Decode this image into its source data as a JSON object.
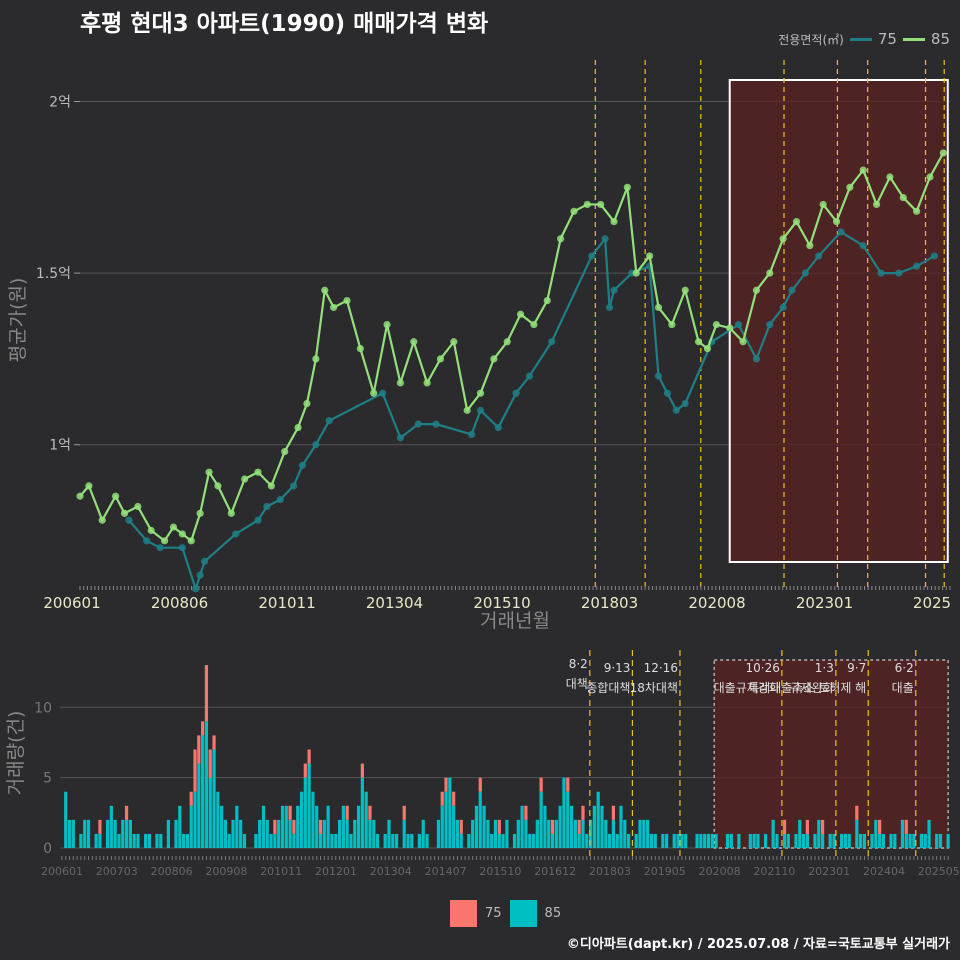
{
  "title": "후평 현대3 아파트(1990) 매매가격 변화",
  "source": "©디아파트(dapt.kr) / 2025.07.08 / 자료=국토교통부 실거래가",
  "legend": {
    "area_title": "전용면적(㎡)",
    "bottom": [
      {
        "name": "75",
        "color": "#f8766d"
      },
      {
        "name": "85",
        "color": "#00bfc4"
      }
    ]
  },
  "colors": {
    "line75": "#1f7f86",
    "line85": "#93e07a",
    "bar75": "#f8766d",
    "bar85": "#00bfc4",
    "policy": "#f0c020",
    "highlight": "#5a2222"
  },
  "chart_data": [
    {
      "type": "line",
      "title": "후평 현대3 아파트(1990) 매매가격 변화",
      "xlabel": "거래년월",
      "ylabel": "평균가(원)",
      "x_ticks": [
        "200601",
        "200806",
        "201011",
        "201304",
        "201510",
        "201803",
        "202008",
        "202301",
        "2025"
      ],
      "y_ticks": [
        {
          "label": "1억",
          "value": 1.0
        },
        {
          "label": "1.5억",
          "value": 1.5
        },
        {
          "label": "2억",
          "value": 2.0
        }
      ],
      "ylim": [
        0.6,
        2.15
      ],
      "x_range": [
        2006.0,
        2025.55
      ],
      "series": [
        {
          "name": "75",
          "points": [
            [
              2007.1,
              0.78
            ],
            [
              2007.5,
              0.72
            ],
            [
              2007.8,
              0.7
            ],
            [
              2008.3,
              0.7
            ],
            [
              2008.6,
              0.58
            ],
            [
              2008.7,
              0.62
            ],
            [
              2008.8,
              0.66
            ],
            [
              2009.5,
              0.74
            ],
            [
              2010.0,
              0.78
            ],
            [
              2010.2,
              0.82
            ],
            [
              2010.5,
              0.84
            ],
            [
              2010.8,
              0.88
            ],
            [
              2011.0,
              0.94
            ],
            [
              2011.3,
              1.0
            ],
            [
              2011.6,
              1.07
            ],
            [
              2012.8,
              1.15
            ],
            [
              2013.2,
              1.02
            ],
            [
              2013.6,
              1.06
            ],
            [
              2014.0,
              1.06
            ],
            [
              2014.8,
              1.03
            ],
            [
              2015.0,
              1.1
            ],
            [
              2015.4,
              1.05
            ],
            [
              2015.8,
              1.15
            ],
            [
              2016.1,
              1.2
            ],
            [
              2016.6,
              1.3
            ],
            [
              2017.5,
              1.55
            ],
            [
              2017.8,
              1.6
            ],
            [
              2017.9,
              1.4
            ],
            [
              2018.0,
              1.45
            ],
            [
              2018.4,
              1.5
            ],
            [
              2018.8,
              1.52
            ],
            [
              2019.0,
              1.2
            ],
            [
              2019.2,
              1.15
            ],
            [
              2019.4,
              1.1
            ],
            [
              2019.6,
              1.12
            ],
            [
              2020.2,
              1.3
            ],
            [
              2020.8,
              1.35
            ],
            [
              2021.2,
              1.25
            ],
            [
              2021.5,
              1.35
            ],
            [
              2021.8,
              1.4
            ],
            [
              2022.0,
              1.45
            ],
            [
              2022.3,
              1.5
            ],
            [
              2022.6,
              1.55
            ],
            [
              2023.1,
              1.62
            ],
            [
              2023.6,
              1.58
            ],
            [
              2024.0,
              1.5
            ],
            [
              2024.4,
              1.5
            ],
            [
              2024.8,
              1.52
            ],
            [
              2025.2,
              1.55
            ]
          ]
        },
        {
          "name": "85",
          "points": [
            [
              2006.0,
              0.85
            ],
            [
              2006.2,
              0.88
            ],
            [
              2006.5,
              0.78
            ],
            [
              2006.8,
              0.85
            ],
            [
              2007.0,
              0.8
            ],
            [
              2007.3,
              0.82
            ],
            [
              2007.6,
              0.75
            ],
            [
              2007.9,
              0.72
            ],
            [
              2008.1,
              0.76
            ],
            [
              2008.3,
              0.74
            ],
            [
              2008.5,
              0.72
            ],
            [
              2008.7,
              0.8
            ],
            [
              2008.9,
              0.92
            ],
            [
              2009.1,
              0.88
            ],
            [
              2009.4,
              0.8
            ],
            [
              2009.7,
              0.9
            ],
            [
              2010.0,
              0.92
            ],
            [
              2010.3,
              0.88
            ],
            [
              2010.6,
              0.98
            ],
            [
              2010.9,
              1.05
            ],
            [
              2011.1,
              1.12
            ],
            [
              2011.3,
              1.25
            ],
            [
              2011.5,
              1.45
            ],
            [
              2011.7,
              1.4
            ],
            [
              2012.0,
              1.42
            ],
            [
              2012.3,
              1.28
            ],
            [
              2012.6,
              1.15
            ],
            [
              2012.9,
              1.35
            ],
            [
              2013.2,
              1.18
            ],
            [
              2013.5,
              1.3
            ],
            [
              2013.8,
              1.18
            ],
            [
              2014.1,
              1.25
            ],
            [
              2014.4,
              1.3
            ],
            [
              2014.7,
              1.1
            ],
            [
              2015.0,
              1.15
            ],
            [
              2015.3,
              1.25
            ],
            [
              2015.6,
              1.3
            ],
            [
              2015.9,
              1.38
            ],
            [
              2016.2,
              1.35
            ],
            [
              2016.5,
              1.42
            ],
            [
              2016.8,
              1.6
            ],
            [
              2017.1,
              1.68
            ],
            [
              2017.4,
              1.7
            ],
            [
              2017.7,
              1.7
            ],
            [
              2018.0,
              1.65
            ],
            [
              2018.3,
              1.75
            ],
            [
              2018.5,
              1.5
            ],
            [
              2018.8,
              1.55
            ],
            [
              2019.0,
              1.4
            ],
            [
              2019.3,
              1.35
            ],
            [
              2019.6,
              1.45
            ],
            [
              2019.9,
              1.3
            ],
            [
              2020.1,
              1.28
            ],
            [
              2020.3,
              1.35
            ],
            [
              2020.6,
              1.34
            ],
            [
              2020.9,
              1.3
            ],
            [
              2021.2,
              1.45
            ],
            [
              2021.5,
              1.5
            ],
            [
              2021.8,
              1.6
            ],
            [
              2022.1,
              1.65
            ],
            [
              2022.4,
              1.58
            ],
            [
              2022.7,
              1.7
            ],
            [
              2023.0,
              1.65
            ],
            [
              2023.3,
              1.75
            ],
            [
              2023.6,
              1.8
            ],
            [
              2023.9,
              1.7
            ],
            [
              2024.2,
              1.78
            ],
            [
              2024.5,
              1.72
            ],
            [
              2024.8,
              1.68
            ],
            [
              2025.1,
              1.78
            ],
            [
              2025.4,
              1.85
            ]
          ]
        }
      ],
      "highlight_range": [
        2020.6,
        2025.5
      ],
      "policy_dates": [
        2017.58,
        2018.7,
        2019.95,
        2021.82,
        2023.02,
        2023.7,
        2025.0,
        2025.42
      ]
    },
    {
      "type": "bar",
      "xlabel": "",
      "ylabel": "거래량(건)",
      "y_ticks": [
        0,
        5,
        10
      ],
      "ylim": [
        0,
        13.5
      ],
      "x_ticks": [
        "200601",
        "200703",
        "200806",
        "200908",
        "201011",
        "201201",
        "201304",
        "201407",
        "201510",
        "201612",
        "201803",
        "201905",
        "202008",
        "202110",
        "202301",
        "202404",
        "202505"
      ],
      "series_names": [
        "75",
        "85"
      ],
      "months": 234,
      "values85": [
        0,
        4,
        2,
        2,
        0,
        1,
        2,
        2,
        0,
        1,
        1,
        0,
        2,
        3,
        2,
        1,
        2,
        2,
        2,
        1,
        1,
        0,
        1,
        1,
        0,
        1,
        1,
        0,
        2,
        0,
        2,
        3,
        1,
        1,
        3,
        4,
        6,
        8,
        9,
        5,
        7,
        4,
        3,
        2,
        1,
        2,
        3,
        2,
        1,
        0,
        0,
        1,
        2,
        3,
        2,
        1,
        1,
        2,
        3,
        3,
        2,
        1,
        3,
        4,
        5,
        6,
        4,
        3,
        1,
        2,
        3,
        1,
        1,
        2,
        3,
        2,
        1,
        2,
        3,
        5,
        4,
        2,
        2,
        1,
        0,
        1,
        2,
        1,
        1,
        0,
        2,
        1,
        1,
        0,
        1,
        2,
        1,
        0,
        0,
        2,
        3,
        4,
        5,
        3,
        2,
        1,
        0,
        1,
        2,
        3,
        4,
        3,
        2,
        1,
        2,
        1,
        1,
        2,
        0,
        1,
        2,
        3,
        2,
        1,
        1,
        2,
        4,
        3,
        2,
        1,
        2,
        3,
        5,
        4,
        3,
        2,
        1,
        2,
        1,
        2,
        3,
        4,
        3,
        2,
        1,
        2,
        1,
        3,
        2,
        1,
        0,
        1,
        2,
        2,
        2,
        1,
        1,
        0,
        1,
        1,
        0,
        1,
        1,
        1,
        1,
        0,
        0,
        1,
        1,
        1,
        1,
        1,
        1,
        0,
        0,
        1,
        1,
        0,
        1,
        0,
        0,
        1,
        1,
        1,
        0,
        1,
        0,
        2,
        1,
        0,
        1,
        1,
        0,
        1,
        2,
        1,
        1,
        0,
        1,
        2,
        1,
        0,
        1,
        1,
        0,
        1,
        1,
        1,
        0,
        2,
        1,
        1,
        0,
        1,
        2,
        1,
        1,
        0,
        1,
        1,
        0,
        2,
        1,
        1,
        1,
        0,
        1,
        1,
        2,
        0,
        1,
        1,
        0,
        1
      ],
      "values75": [
        0,
        0,
        0,
        0,
        0,
        0,
        0,
        0,
        0,
        0,
        1,
        0,
        0,
        0,
        0,
        0,
        0,
        1,
        0,
        0,
        0,
        0,
        0,
        0,
        0,
        0,
        0,
        0,
        0,
        0,
        0,
        0,
        0,
        0,
        1,
        3,
        2,
        1,
        4,
        2,
        1,
        0,
        0,
        0,
        0,
        0,
        0,
        0,
        0,
        0,
        0,
        0,
        0,
        0,
        0,
        0,
        1,
        0,
        0,
        0,
        1,
        1,
        0,
        0,
        1,
        1,
        0,
        0,
        1,
        0,
        0,
        0,
        0,
        0,
        0,
        1,
        0,
        0,
        0,
        1,
        0,
        1,
        0,
        0,
        0,
        0,
        0,
        0,
        0,
        0,
        1,
        0,
        0,
        0,
        0,
        0,
        0,
        0,
        0,
        0,
        1,
        1,
        0,
        1,
        0,
        1,
        0,
        0,
        0,
        0,
        1,
        0,
        0,
        0,
        0,
        1,
        0,
        0,
        0,
        0,
        0,
        0,
        1,
        0,
        0,
        0,
        1,
        0,
        0,
        1,
        0,
        0,
        0,
        1,
        0,
        0,
        1,
        1,
        0,
        0,
        0,
        0,
        0,
        0,
        0,
        1,
        0,
        0,
        0,
        0,
        0,
        0,
        0,
        0,
        0,
        0,
        0,
        0,
        0,
        0,
        0,
        0,
        0,
        0,
        0,
        0,
        0,
        0,
        0,
        0,
        0,
        0,
        0,
        0,
        0,
        0,
        0,
        0,
        0,
        0,
        0,
        0,
        0,
        0,
        0,
        0,
        0,
        0,
        0,
        0,
        1,
        0,
        0,
        0,
        0,
        0,
        1,
        0,
        0,
        0,
        1,
        0,
        0,
        0,
        0,
        0,
        0,
        0,
        0,
        1,
        0,
        0,
        0,
        0,
        0,
        1,
        0,
        0,
        0,
        0,
        0,
        0,
        1,
        0,
        0,
        0,
        0,
        0,
        0,
        0,
        0,
        0,
        0,
        0
      ],
      "policies": [
        {
          "month": 139.3,
          "date": "8·2",
          "label": "대책"
        },
        {
          "month": 150.5,
          "date": "9·13",
          "label": "종합대책"
        },
        {
          "month": 163.0,
          "date": "12·16",
          "label": "18차대책"
        },
        {
          "month": 189.8,
          "date": "10·26",
          "label": "대출규제강화"
        },
        {
          "month": 204.0,
          "date": "1·3",
          "label": "규제완화"
        },
        {
          "month": 212.5,
          "date": "9·7",
          "label": "특례대출축소 토허제 해"
        },
        {
          "month": 225.0,
          "date": "6·2",
          "label": "대출"
        }
      ],
      "highlight_range_months": [
        172.0,
        233.5
      ]
    }
  ]
}
